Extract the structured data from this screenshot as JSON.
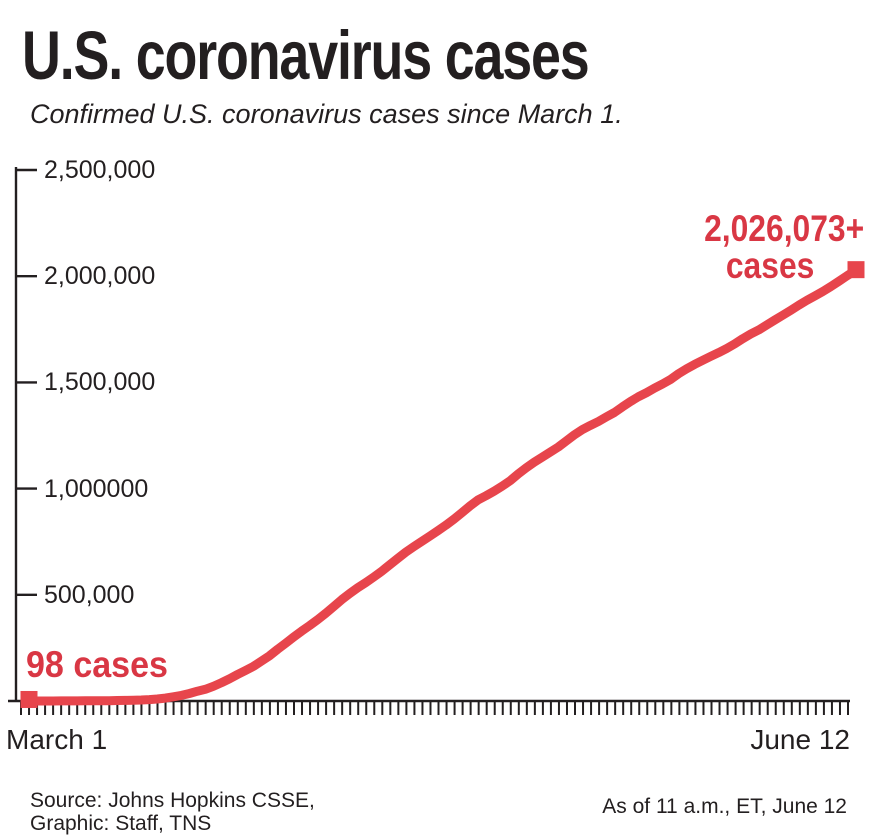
{
  "header": {
    "title": "U.S. coronavirus cases",
    "subtitle": "Confirmed U.S. coronavirus cases since March 1."
  },
  "annotations": {
    "start_label": "98 cases",
    "end_value": "2,026,073+",
    "end_unit": "cases"
  },
  "x_axis": {
    "start_label": "March 1",
    "end_label": "June 12"
  },
  "footer": {
    "source_line1": "Source: Johns Hopkins CSSE,",
    "source_line2": "Graphic: Staff, TNS",
    "as_of": "As of 11 a.m., ET, June 12"
  },
  "colors": {
    "ink": "#231f20",
    "accent_red_text": "#d93744",
    "line_red": "#e7454c",
    "background": "#ffffff"
  },
  "chart_data": {
    "type": "line",
    "title": "U.S. coronavirus cases",
    "subtitle": "Confirmed U.S. coronavirus cases since March 1.",
    "series_name": "Confirmed U.S. coronavirus cases",
    "x_start_label": "March 1",
    "x_end_label": "June 12",
    "x_unit": "day",
    "ylim": [
      0,
      2500000
    ],
    "grid": false,
    "legend": "none",
    "y_tick_labels": [
      "2,500,000",
      "2,000,000",
      "1,500,000",
      "1,000000",
      "500,000"
    ],
    "y_tick_values": [
      2500000,
      2000000,
      1500000,
      1000000,
      500000
    ],
    "first_point": {
      "label": "98 cases",
      "value": 98,
      "date": "March 1"
    },
    "last_point": {
      "label": "2,026,073+ cases",
      "value": 2026073,
      "date": "June 12"
    },
    "values": [
      98,
      122,
      165,
      222,
      331,
      444,
      564,
      728,
      1000,
      1267,
      1645,
      2219,
      2943,
      3680,
      4663,
      6411,
      9259,
      13881,
      19551,
      26209,
      35224,
      46332,
      55231,
      69194,
      85991,
      104686,
      124665,
      143532,
      163539,
      188172,
      213372,
      243453,
      271586,
      300850,
      328872,
      355614,
      383223,
      413052,
      444437,
      477535,
      506396,
      533313,
      557619,
      583670,
      611350,
      641592,
      671706,
      701197,
      727086,
      752326,
      776929,
      802351,
      828170,
      856358,
      887154,
      918785,
      946734,
      966582,
      987909,
      1011194,
      1037210,
      1069030,
      1097774,
      1124122,
      1147835,
      1171633,
      1196092,
      1224623,
      1253054,
      1277881,
      1297638,
      1315834,
      1337636,
      1358348,
      1384593,
      1410285,
      1432773,
      1451664,
      1473294,
      1492583,
      1514039,
      1540902,
      1564094,
      1584828,
      1603436,
      1622226,
      1640275,
      1659803,
      1681346,
      1705530,
      1727820,
      1747170,
      1770500,
      1793800,
      1816500,
      1839300,
      1863900,
      1886700,
      1907200,
      1928500,
      1951400,
      1976500,
      2002100,
      2026073
    ]
  }
}
